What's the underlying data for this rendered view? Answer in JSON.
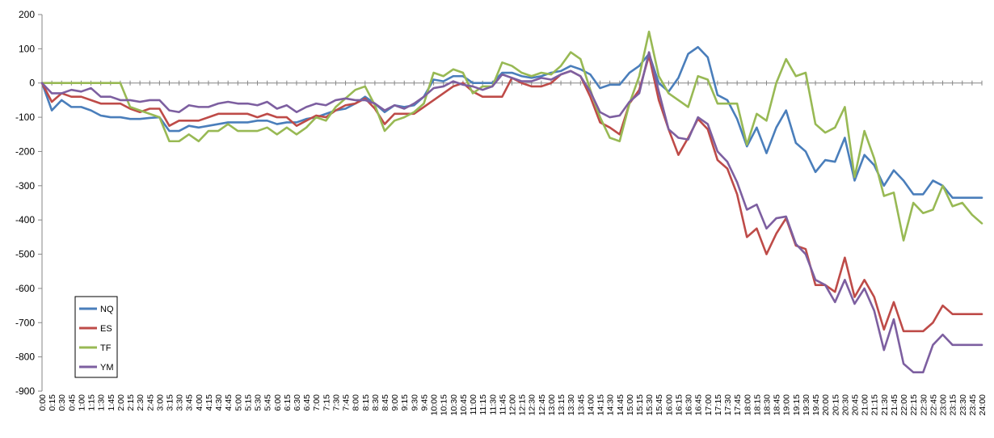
{
  "chart_data": {
    "type": "line",
    "title": "",
    "xlabel": "",
    "ylabel": "",
    "ylim": [
      -900,
      200
    ],
    "yticks": [
      200,
      100,
      0,
      -100,
      -200,
      -300,
      -400,
      -500,
      -600,
      -700,
      -800,
      -900
    ],
    "x": [
      "0:00",
      "0:15",
      "0:30",
      "0:45",
      "1:00",
      "1:15",
      "1:30",
      "1:45",
      "2:00",
      "2:15",
      "2:30",
      "2:45",
      "3:00",
      "3:15",
      "3:30",
      "3:45",
      "4:00",
      "4:15",
      "4:30",
      "4:45",
      "5:00",
      "5:15",
      "5:30",
      "5:45",
      "6:00",
      "6:15",
      "6:30",
      "6:45",
      "7:00",
      "7:15",
      "7:30",
      "7:45",
      "8:00",
      "8:15",
      "8:30",
      "8:45",
      "9:00",
      "9:15",
      "9:30",
      "9:45",
      "10:00",
      "10:15",
      "10:30",
      "10:45",
      "11:00",
      "11:15",
      "11:30",
      "11:45",
      "12:00",
      "12:15",
      "12:30",
      "12:45",
      "13:00",
      "13:15",
      "13:30",
      "13:45",
      "14:00",
      "14:15",
      "14:30",
      "14:45",
      "15:00",
      "15:15",
      "15:30",
      "15:45",
      "16:00",
      "16:15",
      "16:30",
      "16:45",
      "17:00",
      "17:15",
      "17:30",
      "17:45",
      "18:00",
      "18:15",
      "18:30",
      "18:45",
      "19:00",
      "19:15",
      "19:30",
      "19:45",
      "20:00",
      "20:15",
      "20:30",
      "20:45",
      "21:00",
      "21:15",
      "21:30",
      "21:45",
      "22:00",
      "22:15",
      "22:30",
      "22:45",
      "23:00",
      "23:15",
      "23:30",
      "23:45",
      "24:00"
    ],
    "legend_position": "bottom-left",
    "grid": false,
    "series": [
      {
        "name": "NQ",
        "color": "#4a7ebb",
        "values": [
          0,
          -80,
          -50,
          -70,
          -70,
          -80,
          -95,
          -100,
          -100,
          -105,
          -105,
          -102,
          -100,
          -140,
          -140,
          -125,
          -130,
          -125,
          -120,
          -115,
          -115,
          -115,
          -110,
          -110,
          -120,
          -115,
          -115,
          -105,
          -100,
          -90,
          -80,
          -75,
          -60,
          -40,
          -60,
          -85,
          -65,
          -70,
          -65,
          -40,
          10,
          5,
          20,
          20,
          0,
          0,
          0,
          30,
          30,
          20,
          15,
          20,
          30,
          35,
          50,
          40,
          25,
          -15,
          -5,
          -5,
          30,
          50,
          85,
          0,
          -25,
          15,
          85,
          105,
          75,
          -35,
          -50,
          -105,
          -185,
          -130,
          -205,
          -130,
          -80,
          -175,
          -200,
          -260,
          -225,
          -230,
          -160,
          -285,
          -210,
          -240,
          -300,
          -255,
          -285,
          -325,
          -325,
          -285,
          -300,
          -335,
          -335,
          -335,
          -335
        ]
      },
      {
        "name": "ES",
        "color": "#be4b48",
        "values": [
          0,
          -55,
          -30,
          -40,
          -40,
          -50,
          -60,
          -60,
          -60,
          -75,
          -85,
          -75,
          -75,
          -125,
          -110,
          -110,
          -110,
          -100,
          -90,
          -90,
          -90,
          -90,
          -100,
          -90,
          -100,
          -100,
          -125,
          -110,
          -95,
          -100,
          -80,
          -65,
          -60,
          -45,
          -75,
          -120,
          -90,
          -90,
          -90,
          -70,
          -50,
          -30,
          -10,
          0,
          -25,
          -40,
          -40,
          -40,
          15,
          0,
          -10,
          -10,
          0,
          25,
          35,
          20,
          -40,
          -115,
          -130,
          -150,
          -60,
          -20,
          80,
          -50,
          -135,
          -210,
          -160,
          -105,
          -135,
          -225,
          -250,
          -325,
          -450,
          -425,
          -500,
          -440,
          -395,
          -475,
          -485,
          -590,
          -590,
          -610,
          -510,
          -625,
          -575,
          -625,
          -720,
          -640,
          -725,
          -725,
          -725,
          -700,
          -650,
          -675,
          -675,
          -675,
          -675
        ]
      },
      {
        "name": "TF",
        "color": "#98b954",
        "values": [
          0,
          0,
          0,
          0,
          0,
          0,
          0,
          0,
          0,
          -70,
          -80,
          -90,
          -100,
          -170,
          -170,
          -150,
          -170,
          -140,
          -140,
          -120,
          -140,
          -140,
          -140,
          -130,
          -150,
          -130,
          -150,
          -130,
          -100,
          -110,
          -70,
          -45,
          -20,
          -10,
          -65,
          -140,
          -110,
          -100,
          -85,
          -60,
          30,
          20,
          40,
          30,
          -30,
          -10,
          -10,
          60,
          50,
          30,
          20,
          30,
          25,
          50,
          90,
          70,
          -20,
          -100,
          -160,
          -170,
          -60,
          20,
          150,
          20,
          -30,
          -50,
          -70,
          20,
          10,
          -60,
          -60,
          -60,
          -180,
          -90,
          -110,
          0,
          70,
          20,
          30,
          -120,
          -145,
          -130,
          -70,
          -275,
          -140,
          -220,
          -330,
          -320,
          -460,
          -350,
          -380,
          -370,
          -300,
          -360,
          -350,
          -385,
          -410
        ]
      },
      {
        "name": "YM",
        "color": "#7d5fa0",
        "values": [
          0,
          -30,
          -30,
          -20,
          -25,
          -15,
          -40,
          -40,
          -50,
          -50,
          -55,
          -50,
          -50,
          -80,
          -85,
          -65,
          -70,
          -70,
          -60,
          -55,
          -60,
          -60,
          -65,
          -55,
          -75,
          -65,
          -85,
          -70,
          -60,
          -65,
          -50,
          -45,
          -50,
          -50,
          -60,
          -80,
          -65,
          -75,
          -60,
          -40,
          -15,
          -10,
          5,
          -5,
          -10,
          -20,
          -10,
          25,
          15,
          5,
          5,
          15,
          10,
          25,
          35,
          20,
          -25,
          -85,
          -100,
          -95,
          -55,
          -30,
          90,
          -25,
          -135,
          -160,
          -165,
          -100,
          -120,
          -200,
          -230,
          -290,
          -370,
          -355,
          -425,
          -395,
          -390,
          -470,
          -500,
          -575,
          -590,
          -640,
          -575,
          -645,
          -600,
          -665,
          -780,
          -690,
          -820,
          -845,
          -845,
          -765,
          -735,
          -765,
          -765,
          -765,
          -765
        ]
      }
    ]
  }
}
